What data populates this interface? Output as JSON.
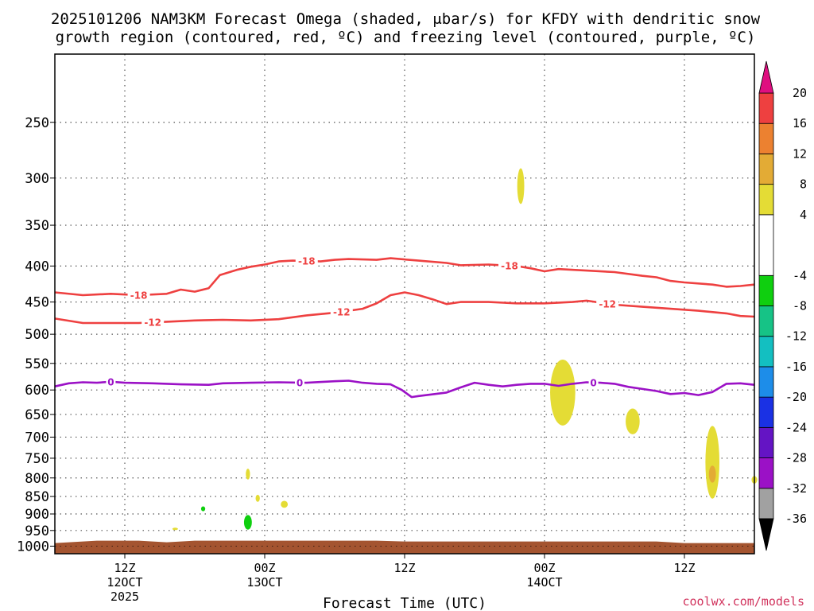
{
  "chart_data": {
    "type": "time-height-contour",
    "title_line1": "2025101206 NAM3KM Forecast Omega (shaded, μbar/s) for KFDY with dendritic snow",
    "title_line2": "growth region (contoured, red, ºC) and freezing level (contoured, purple, ºC)",
    "xlabel": "Forecast Time (UTC)",
    "credit": "coolwx.com/models",
    "x_range_hours": [
      7,
      57
    ],
    "y_ticks": [
      250,
      300,
      350,
      400,
      450,
      500,
      550,
      600,
      650,
      700,
      750,
      800,
      850,
      900,
      950,
      1000
    ],
    "y_range": [
      200,
      1025
    ],
    "x_ticks": [
      {
        "hour": 12,
        "label": "12Z",
        "sub1": "12OCT",
        "sub2": "2025"
      },
      {
        "hour": 22,
        "label": "00Z",
        "sub1": "13OCT",
        "sub2": ""
      },
      {
        "hour": 32,
        "label": "12Z",
        "sub1": "",
        "sub2": ""
      },
      {
        "hour": 42,
        "label": "00Z",
        "sub1": "14OCT",
        "sub2": ""
      },
      {
        "hour": 52,
        "label": "12Z",
        "sub1": "",
        "sub2": ""
      }
    ],
    "contours": [
      {
        "name": "minus18",
        "label": "-18",
        "color": "#ee4040",
        "points": [
          [
            7,
            436
          ],
          [
            9,
            440
          ],
          [
            11,
            438
          ],
          [
            13,
            440
          ],
          [
            15,
            438
          ],
          [
            16,
            432
          ],
          [
            17,
            435
          ],
          [
            18,
            430
          ],
          [
            18.8,
            412
          ],
          [
            20,
            405
          ],
          [
            21,
            401
          ],
          [
            22,
            398
          ],
          [
            23,
            394
          ],
          [
            24,
            393
          ],
          [
            26,
            394
          ],
          [
            27,
            392
          ],
          [
            28,
            391
          ],
          [
            30,
            392
          ],
          [
            31,
            390
          ],
          [
            33,
            393
          ],
          [
            35,
            396
          ],
          [
            36,
            399
          ],
          [
            38,
            398
          ],
          [
            40,
            400
          ],
          [
            41,
            403
          ],
          [
            42,
            407
          ],
          [
            43,
            404
          ],
          [
            45,
            406
          ],
          [
            47,
            408
          ],
          [
            49,
            413
          ],
          [
            50,
            415
          ],
          [
            51,
            420
          ],
          [
            52,
            422
          ],
          [
            54,
            425
          ],
          [
            55,
            428
          ],
          [
            56,
            427
          ],
          [
            57,
            425
          ]
        ],
        "label_hours": [
          13,
          25,
          39.5
        ]
      },
      {
        "name": "minus12",
        "label": "-12",
        "color": "#ee4040",
        "points": [
          [
            7,
            475
          ],
          [
            9,
            482
          ],
          [
            11,
            482
          ],
          [
            13,
            482
          ],
          [
            15,
            480
          ],
          [
            17,
            478
          ],
          [
            19,
            477
          ],
          [
            21,
            478
          ],
          [
            23,
            476
          ],
          [
            25,
            470
          ],
          [
            27,
            466
          ],
          [
            29,
            460
          ],
          [
            30,
            452
          ],
          [
            31,
            440
          ],
          [
            32,
            436
          ],
          [
            33,
            440
          ],
          [
            34,
            446
          ],
          [
            35,
            453
          ],
          [
            36,
            450
          ],
          [
            38,
            450
          ],
          [
            40,
            452
          ],
          [
            42,
            452
          ],
          [
            44,
            450
          ],
          [
            45,
            448
          ],
          [
            47,
            454
          ],
          [
            49,
            457
          ],
          [
            51,
            460
          ],
          [
            53,
            463
          ],
          [
            55,
            467
          ],
          [
            56,
            471
          ],
          [
            57,
            472
          ]
        ],
        "label_hours": [
          14,
          27.5,
          46.5
        ]
      },
      {
        "name": "zero",
        "label": "0",
        "color": "#9b11c6",
        "points": [
          [
            7,
            593
          ],
          [
            8,
            587
          ],
          [
            9,
            585
          ],
          [
            10,
            586
          ],
          [
            11,
            584
          ],
          [
            12,
            586
          ],
          [
            14,
            587
          ],
          [
            16,
            589
          ],
          [
            18,
            590
          ],
          [
            19,
            587
          ],
          [
            21,
            586
          ],
          [
            23,
            585
          ],
          [
            25,
            586
          ],
          [
            27,
            583
          ],
          [
            28,
            582
          ],
          [
            29,
            586
          ],
          [
            30,
            588
          ],
          [
            31,
            589
          ],
          [
            31.8,
            600
          ],
          [
            32.5,
            614
          ],
          [
            33,
            612
          ],
          [
            35,
            605
          ],
          [
            36,
            595
          ],
          [
            37,
            586
          ],
          [
            38,
            590
          ],
          [
            39,
            593
          ],
          [
            40,
            590
          ],
          [
            41,
            588
          ],
          [
            42,
            588
          ],
          [
            43,
            592
          ],
          [
            44,
            588
          ],
          [
            45,
            585
          ],
          [
            46,
            586
          ],
          [
            47,
            588
          ],
          [
            48,
            594
          ],
          [
            49,
            598
          ],
          [
            50,
            602
          ],
          [
            51,
            608
          ],
          [
            52,
            606
          ],
          [
            53,
            610
          ],
          [
            54,
            604
          ],
          [
            55,
            588
          ],
          [
            56,
            587
          ],
          [
            57,
            590
          ]
        ],
        "label_hours": [
          11,
          24.5,
          45.5
        ]
      }
    ],
    "omega_blobs": [
      {
        "name": "omega-blob-300mb",
        "value": 4,
        "color": "#e4dc35",
        "hour": 40.3,
        "p": 308,
        "rx": 0.25,
        "rp": 18
      },
      {
        "name": "omega-blob-600mb",
        "value": 4,
        "color": "#e4dc35",
        "hour": 43.3,
        "p": 605,
        "rx": 0.9,
        "rp": 65
      },
      {
        "name": "omega-blob-650mb",
        "value": 4,
        "color": "#e4dc35",
        "hour": 48.3,
        "p": 665,
        "rx": 0.5,
        "rp": 28
      },
      {
        "name": "omega-blob-750mb-east",
        "value": 4,
        "color": "#e4dc35",
        "hour": 54,
        "p": 760,
        "rx": 0.5,
        "rp": 90
      },
      {
        "name": "omega-blob-790mb-core",
        "value": 8,
        "color": "#e3ab35",
        "hour": 54,
        "p": 790,
        "rx": 0.25,
        "rp": 22
      },
      {
        "name": "omega-blob-800mb-edge",
        "value": 4,
        "color": "#e4dc35",
        "hour": 57,
        "p": 805,
        "rx": 0.2,
        "rp": 10
      },
      {
        "name": "omega-blob-800mb-west",
        "value": 4,
        "color": "#e4dc35",
        "hour": 20.8,
        "p": 790,
        "rx": 0.15,
        "rp": 14
      },
      {
        "name": "omega-blob-860mb",
        "value": 4,
        "color": "#e4dc35",
        "hour": 21.5,
        "p": 855,
        "rx": 0.15,
        "rp": 10
      },
      {
        "name": "omega-blob-875mb",
        "value": 4,
        "color": "#e4dc35",
        "hour": 23.4,
        "p": 872,
        "rx": 0.25,
        "rp": 10
      },
      {
        "name": "omega-blob-945mb",
        "value": 4,
        "color": "#e4dc35",
        "hour": 15.6,
        "p": 945,
        "rx": 0.2,
        "rp": 3
      },
      {
        "name": "omega-blob-neg-885mb",
        "value": -4,
        "color": "#0fcf0f",
        "hour": 17.6,
        "p": 885,
        "rx": 0.15,
        "rp": 7
      },
      {
        "name": "omega-blob-neg-925mb",
        "value": -8,
        "color": "#0fcf0f",
        "hour": 20.8,
        "p": 925,
        "rx": 0.28,
        "rp": 22
      }
    ],
    "ground": {
      "color": "#a45430",
      "label": "terrain (below ground)"
    },
    "colorbar": {
      "bins": [
        {
          "from": -36,
          "to": -32,
          "color": "#a1a1a1"
        },
        {
          "from": -32,
          "to": -28,
          "color": "#9b11c6"
        },
        {
          "from": -28,
          "to": -24,
          "color": "#6414c4"
        },
        {
          "from": -24,
          "to": -20,
          "color": "#1a31e4"
        },
        {
          "from": -20,
          "to": -16,
          "color": "#1d8de9"
        },
        {
          "from": -16,
          "to": -12,
          "color": "#13bfc1"
        },
        {
          "from": -12,
          "to": -8,
          "color": "#16c386"
        },
        {
          "from": -8,
          "to": -4,
          "color": "#0fcf0f"
        },
        {
          "from": -4,
          "to": 4,
          "color": "#ffffff"
        },
        {
          "from": 4,
          "to": 8,
          "color": "#e4dc35"
        },
        {
          "from": 8,
          "to": 12,
          "color": "#e3ab35"
        },
        {
          "from": 12,
          "to": 16,
          "color": "#ec8130"
        },
        {
          "from": 16,
          "to": 20,
          "color": "#ee4040"
        }
      ],
      "ticks": [
        "20",
        "16",
        "12",
        "8",
        "4",
        "-4",
        "-8",
        "-12",
        "-16",
        "-20",
        "-24",
        "-28",
        "-32",
        "-36"
      ],
      "top_arrow_color": "#df0f80",
      "bottom_arrow_color": "#000000"
    }
  }
}
